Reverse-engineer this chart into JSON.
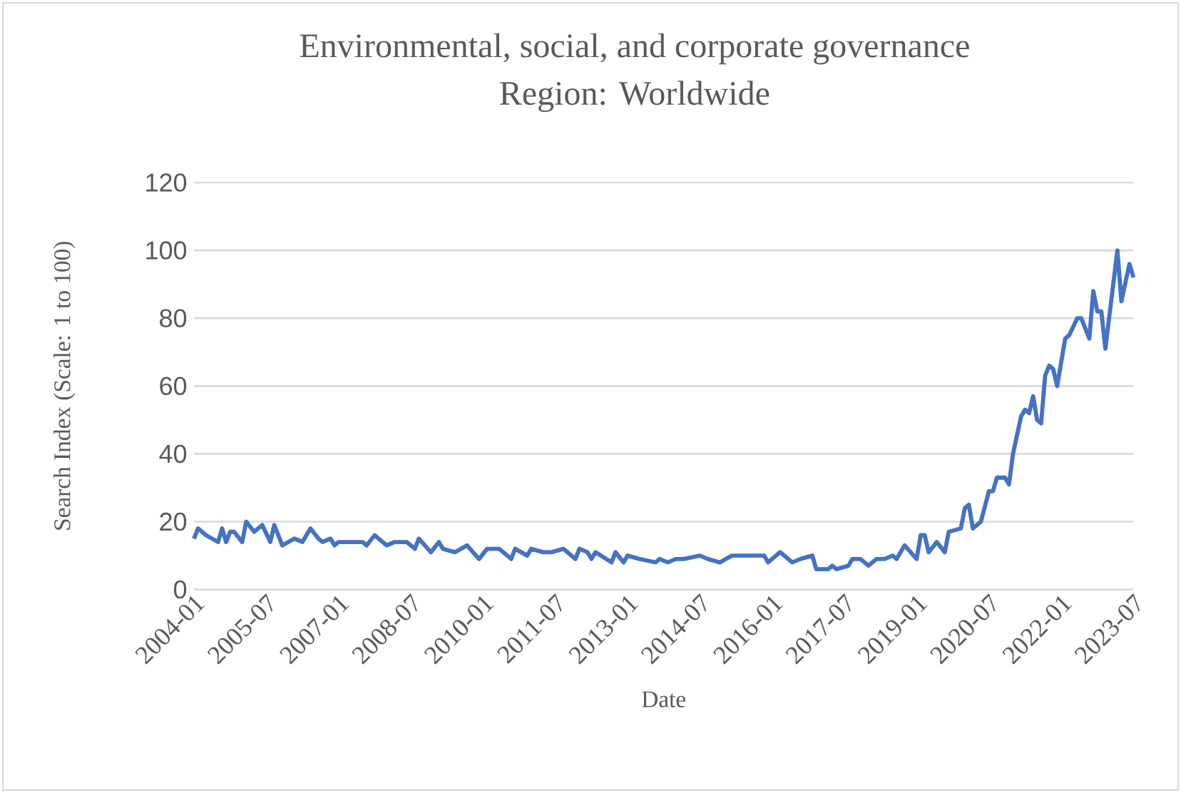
{
  "chart_data": {
    "type": "line",
    "title": "Environmental, social, and corporate governance",
    "subtitle": "Region: Worldwide",
    "xlabel": "Date",
    "ylabel": "Search Index (Scale: 1 to 100)",
    "x": [
      "2004-01",
      "2004-02",
      "2004-04",
      "2004-07",
      "2004-08",
      "2004-09",
      "2004-10",
      "2004-11",
      "2005-01",
      "2005-02",
      "2005-04",
      "2005-06",
      "2005-08",
      "2005-09",
      "2005-11",
      "2006-02",
      "2006-04",
      "2006-06",
      "2006-08",
      "2006-09",
      "2006-11",
      "2006-12",
      "2007-01",
      "2007-07",
      "2007-08",
      "2007-10",
      "2008-01",
      "2008-03",
      "2008-06",
      "2008-08",
      "2008-09",
      "2008-12",
      "2009-02",
      "2009-03",
      "2009-06",
      "2009-09",
      "2009-12",
      "2010-02",
      "2010-05",
      "2010-08",
      "2010-09",
      "2010-12",
      "2011-01",
      "2011-04",
      "2011-06",
      "2011-09",
      "2011-12",
      "2012-01",
      "2012-03",
      "2012-04",
      "2012-05",
      "2012-09",
      "2012-10",
      "2012-12",
      "2013-01",
      "2013-04",
      "2013-08",
      "2013-09",
      "2013-11",
      "2014-01",
      "2014-03",
      "2014-07",
      "2014-09",
      "2014-12",
      "2015-03",
      "2015-05",
      "2015-11",
      "2015-12",
      "2016-03",
      "2016-06",
      "2016-08",
      "2016-11",
      "2016-12",
      "2017-03",
      "2017-04",
      "2017-05",
      "2017-08",
      "2017-09",
      "2017-11",
      "2018-01",
      "2018-03",
      "2018-05",
      "2018-07",
      "2018-08",
      "2018-10",
      "2019-01",
      "2019-02",
      "2019-03",
      "2019-04",
      "2019-06",
      "2019-08",
      "2019-09",
      "2019-12",
      "2020-01",
      "2020-02",
      "2020-03",
      "2020-05",
      "2020-07",
      "2020-08",
      "2020-09",
      "2020-11",
      "2020-12",
      "2021-01",
      "2021-03",
      "2021-04",
      "2021-05",
      "2021-06",
      "2021-07",
      "2021-08",
      "2021-09",
      "2021-10",
      "2021-11",
      "2021-12",
      "2022-02",
      "2022-03",
      "2022-05",
      "2022-06",
      "2022-08",
      "2022-09",
      "2022-10",
      "2022-11",
      "2022-12",
      "2023-03",
      "2023-04",
      "2023-06",
      "2023-07"
    ],
    "series": [
      {
        "color": "#4472c4",
        "values": [
          15,
          18,
          16,
          14,
          18,
          14,
          17,
          17,
          14,
          20,
          17,
          19,
          14,
          19,
          13,
          15,
          14,
          18,
          15,
          14,
          15,
          13,
          14,
          14,
          13,
          16,
          13,
          14,
          14,
          12,
          15,
          11,
          14,
          12,
          11,
          13,
          9,
          12,
          12,
          9,
          12,
          10,
          12,
          11,
          11,
          12,
          9,
          12,
          11,
          9,
          11,
          8,
          11,
          8,
          10,
          9,
          8,
          9,
          8,
          9,
          9,
          10,
          9,
          8,
          10,
          10,
          10,
          8,
          11,
          8,
          9,
          10,
          6,
          6,
          7,
          6,
          7,
          9,
          9,
          7,
          9,
          9,
          10,
          9,
          13,
          9,
          16,
          16,
          11,
          14,
          11,
          17,
          18,
          24,
          25,
          18,
          20,
          29,
          29,
          33,
          33,
          31,
          40,
          51,
          53,
          52,
          57,
          50,
          49,
          63,
          66,
          65,
          60,
          74,
          75,
          80,
          80,
          74,
          88,
          82,
          82,
          71,
          100,
          85,
          96,
          92
        ]
      }
    ],
    "xlim": [
      "2004-01",
      "2023-07"
    ],
    "xticks": [
      "2004-01",
      "2005-07",
      "2007-01",
      "2008-07",
      "2010-01",
      "2011-07",
      "2013-01",
      "2014-07",
      "2016-01",
      "2017-07",
      "2019-01",
      "2020-07",
      "2022-01",
      "2023-07"
    ],
    "ylim": [
      0,
      120
    ],
    "yticks": [
      0,
      20,
      40,
      60,
      80,
      100,
      120
    ],
    "grid": "y",
    "marker": "none",
    "line_style": "solid"
  }
}
